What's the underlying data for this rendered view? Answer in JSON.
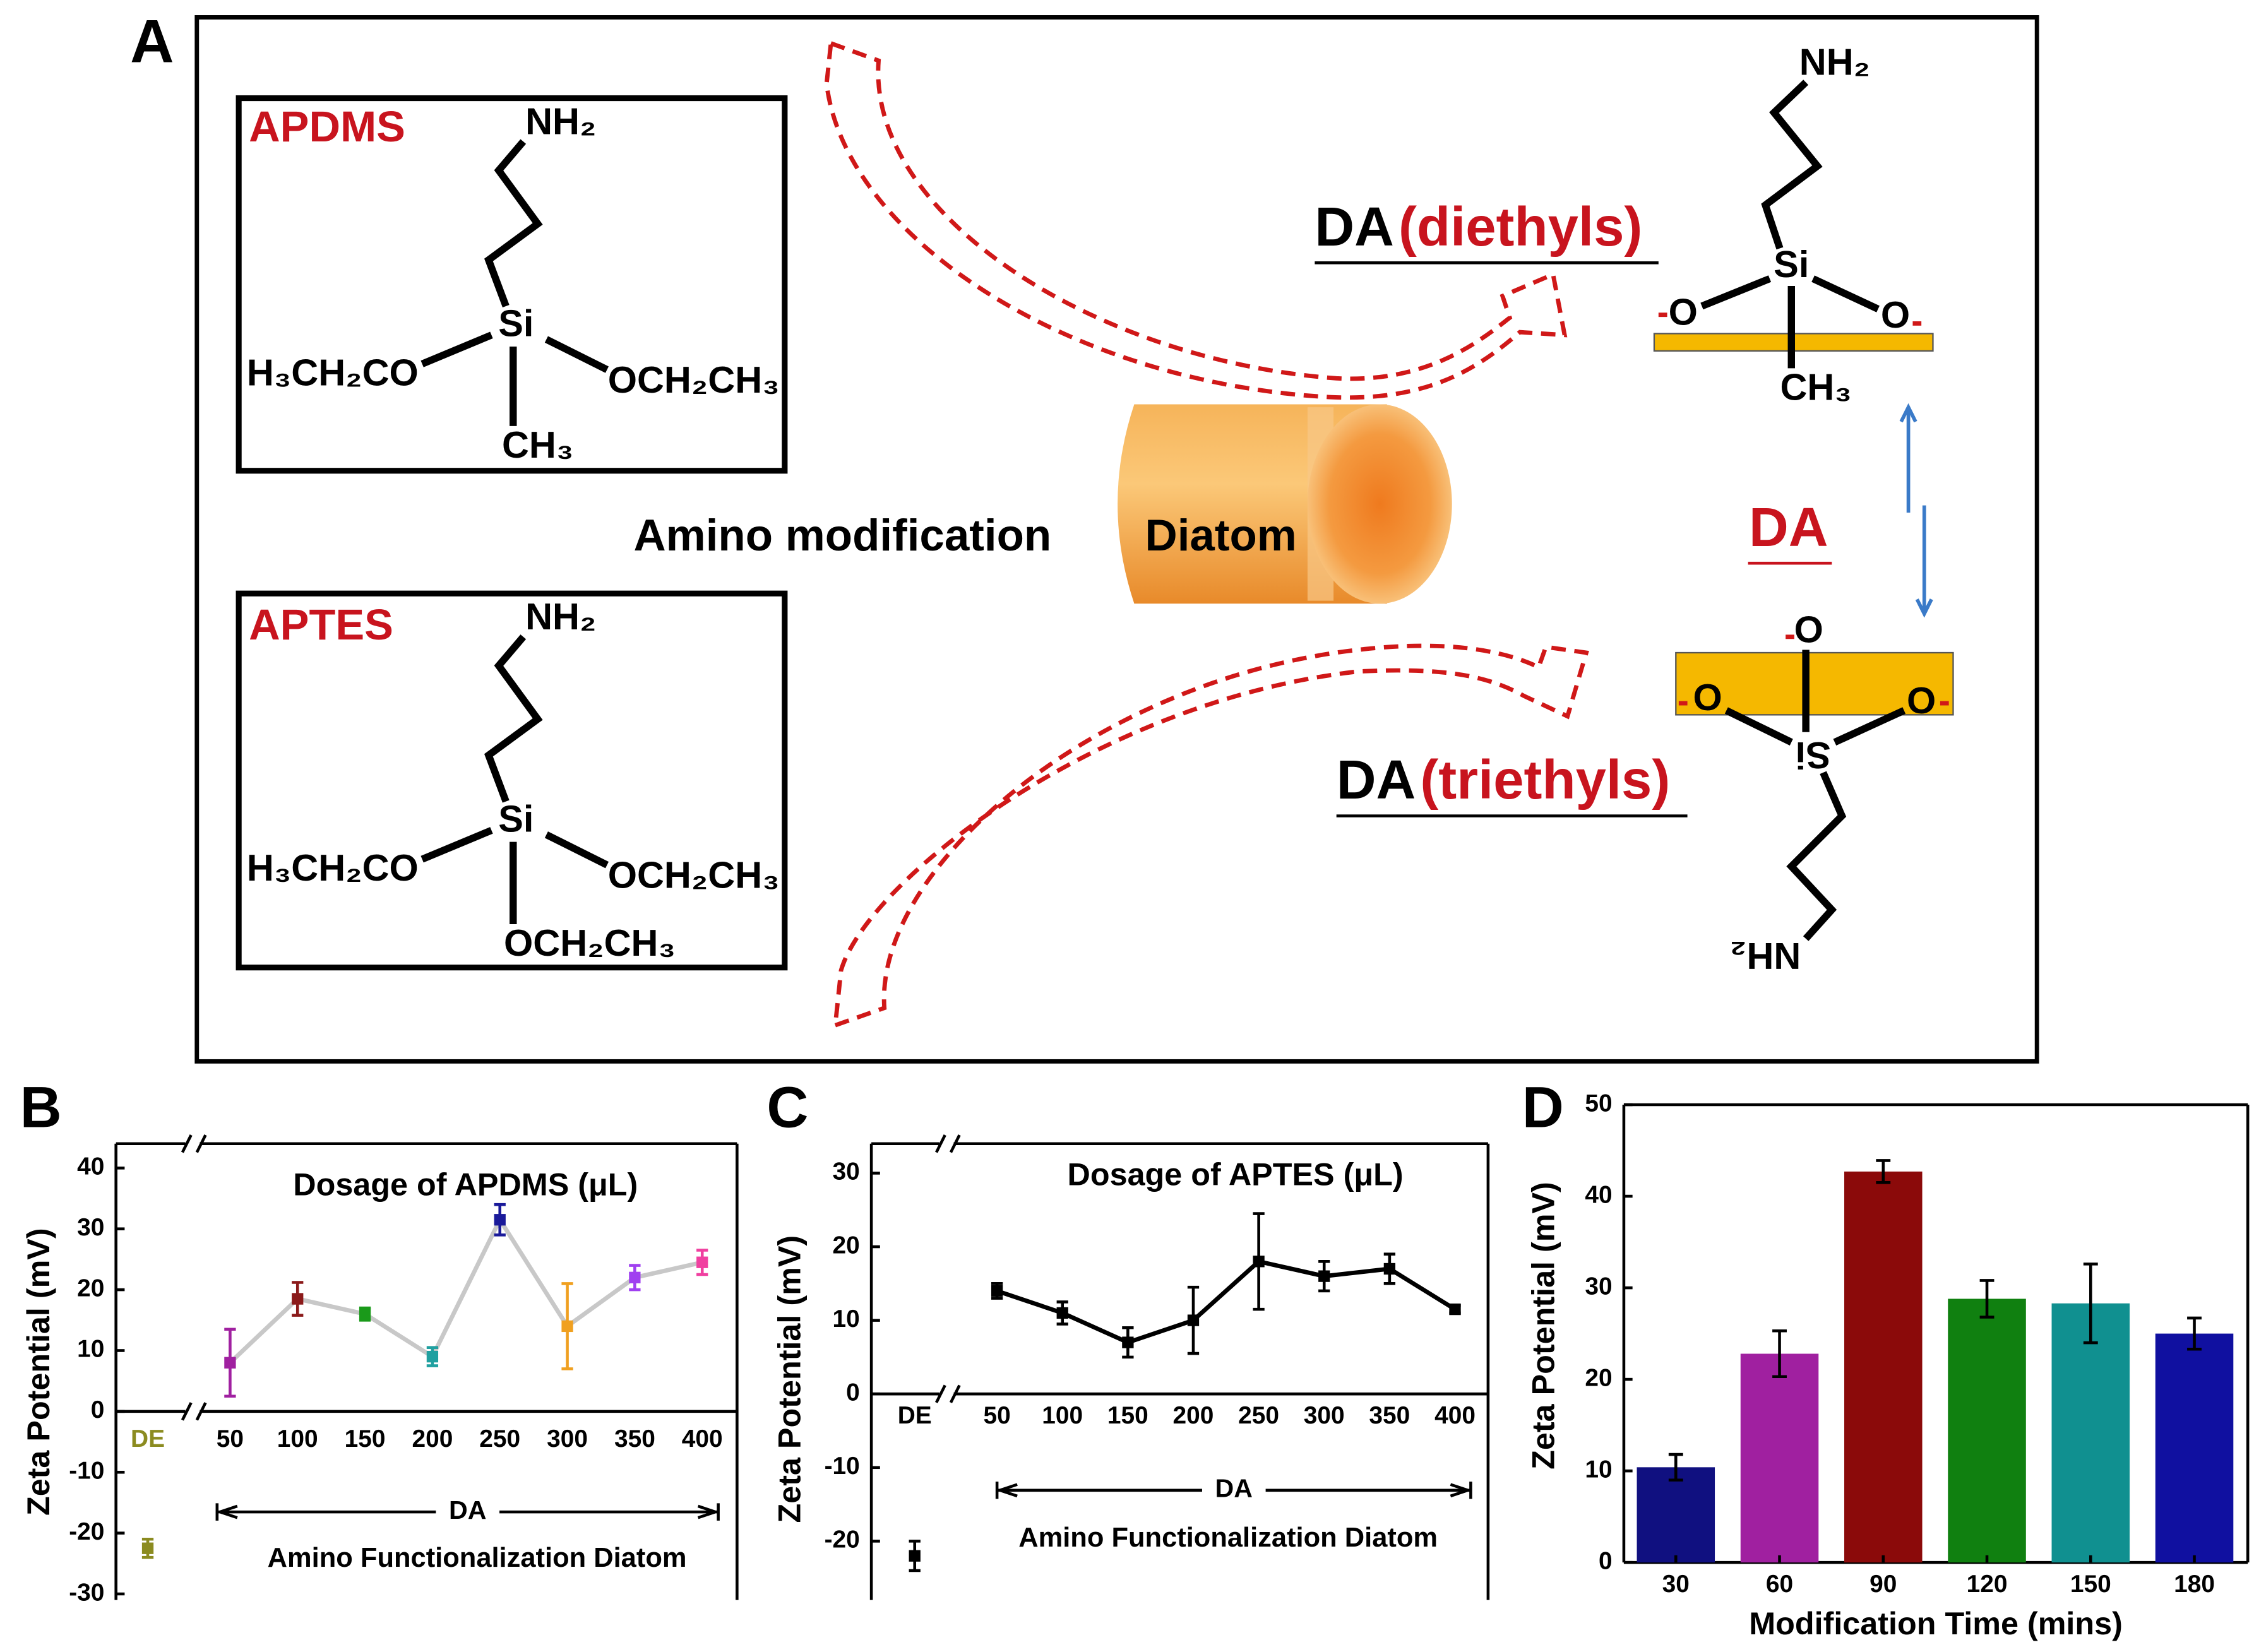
{
  "panel_a": {
    "label": "A",
    "apdms": {
      "name": "APDMS",
      "top": "NH₂",
      "center": "Si",
      "left": "H₃CH₂CO",
      "right": "OCH₂CH₃",
      "bottom": "CH₃"
    },
    "aptes": {
      "name": "APTES",
      "top": "NH₂",
      "center": "Si",
      "left": "H₃CH₂CO",
      "right": "OCH₂CH₃",
      "bottom": "OCH₂CH₃"
    },
    "process": "Amino modification",
    "core": "Diatom",
    "diethyls": {
      "prefix": "DA",
      "suffix": "(diethyls)",
      "top": "NH₂",
      "center": "Si",
      "left": "O",
      "right": "O",
      "bottom": "CH₃"
    },
    "triethyls": {
      "prefix": "DA",
      "suffix": "(triethyls)",
      "top": "O",
      "left": "O",
      "right": "O",
      "center": "Si",
      "bottom": "NH₂"
    },
    "middle": "DA"
  },
  "chart_data": [
    {
      "type": "line",
      "panel_label": "B",
      "title": "Dosage of APDMS (μL)",
      "ylabel": "Zeta Potential (mV)",
      "xlabel": "Amino Functionalization Diatom",
      "x_group_label": "DA",
      "reference": {
        "category": "DE",
        "value": -22.5,
        "error": 1.5,
        "color": "#8b8b20"
      },
      "categories": [
        "50",
        "100",
        "150",
        "200",
        "250",
        "300",
        "350",
        "400"
      ],
      "values": [
        8,
        18.5,
        16,
        9,
        31.5,
        14,
        22,
        24.5
      ],
      "errors": [
        5.5,
        2.7,
        1,
        1.5,
        2.5,
        7,
        2,
        2
      ],
      "colors": [
        "#a020a0",
        "#8b1a1a",
        "#1a9a1a",
        "#20a0a0",
        "#1a1a9a",
        "#f0a020",
        "#a040f0",
        "#f040a0"
      ],
      "line_color": "#c8c8c8",
      "ylim": [
        -31,
        44
      ],
      "yticks": [
        40,
        30,
        20,
        10,
        0,
        -10,
        -20,
        -30
      ],
      "axis_break": true
    },
    {
      "type": "line",
      "panel_label": "C",
      "title": "Dosage of APTES (μL)",
      "ylabel": "Zeta Potential (mV)",
      "xlabel": "Amino Functionalization Diatom",
      "x_group_label": "DA",
      "reference": {
        "category": "DE",
        "value": -22,
        "error": 2,
        "color": "#000000"
      },
      "categories": [
        "50",
        "100",
        "150",
        "200",
        "250",
        "300",
        "350",
        "400"
      ],
      "values": [
        14,
        11,
        7,
        10,
        18,
        16,
        17,
        11.5
      ],
      "errors": [
        1,
        1.5,
        2,
        4.5,
        6.5,
        2,
        2,
        0.5
      ],
      "color": "#000000",
      "line_color": "#000000",
      "ylim": [
        -28,
        34
      ],
      "yticks": [
        30,
        20,
        10,
        0,
        -10,
        -20
      ],
      "axis_break": true
    },
    {
      "type": "bar",
      "panel_label": "D",
      "ylabel": "Zeta Potential (mV)",
      "xlabel": "Modification Time (mins)",
      "categories": [
        "30",
        "60",
        "90",
        "120",
        "150",
        "180"
      ],
      "values": [
        10.4,
        22.8,
        42.7,
        28.8,
        28.3,
        25
      ],
      "errors": [
        1.4,
        2.5,
        1.2,
        2,
        4.3,
        1.7
      ],
      "colors": [
        "#101080",
        "#a020a0",
        "#8b0a0a",
        "#108010",
        "#109090",
        "#1010a0"
      ],
      "ylim": [
        0,
        50
      ],
      "yticks": [
        0,
        10,
        20,
        30,
        40,
        50
      ]
    }
  ]
}
